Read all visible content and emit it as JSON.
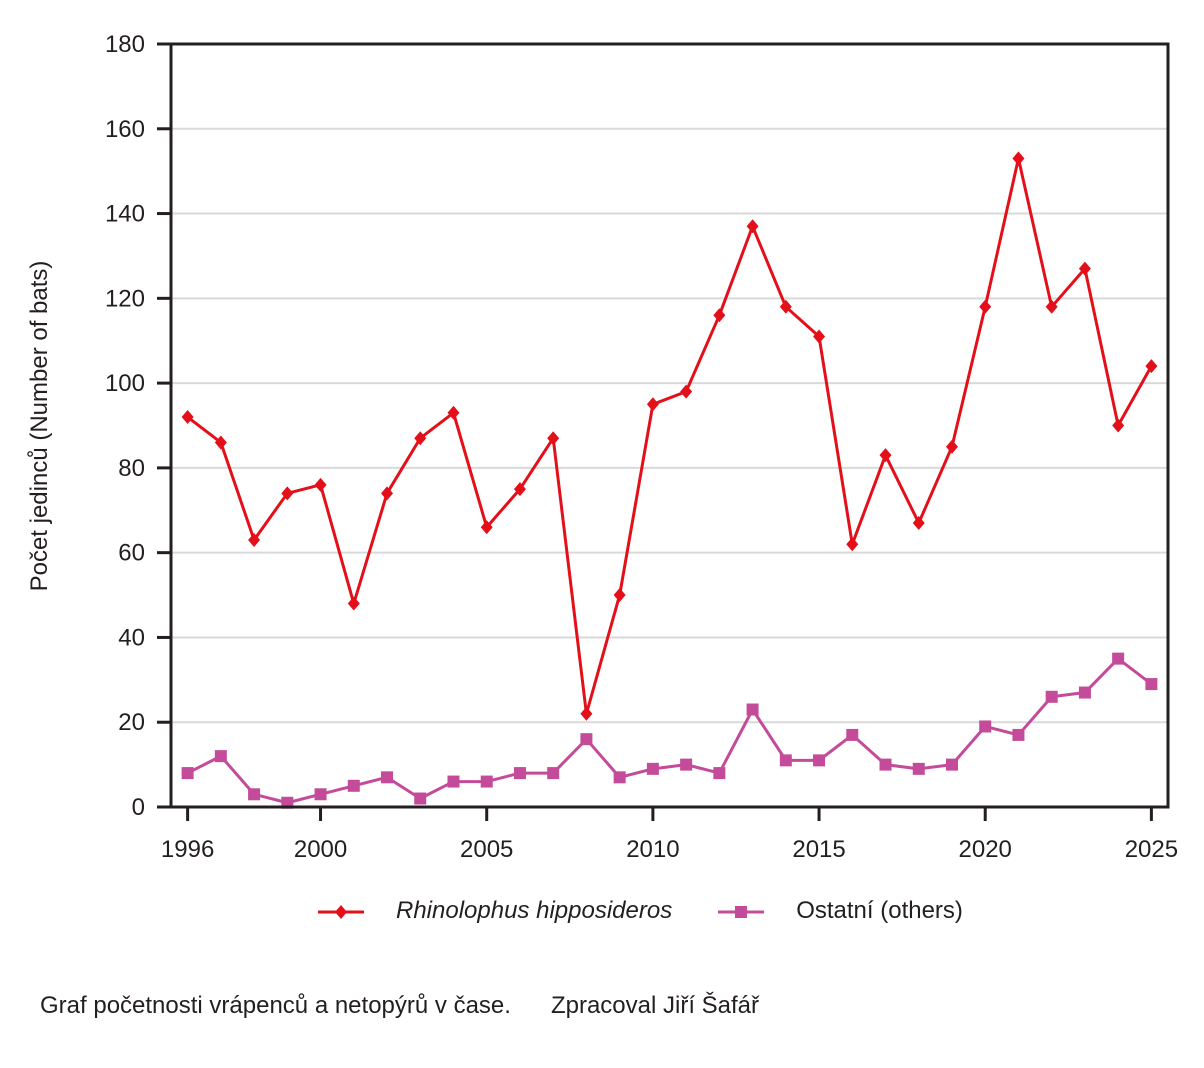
{
  "chart_data": {
    "type": "line",
    "title": "",
    "xlabel": "",
    "ylabel": "Počet jedinců (Number of bats)",
    "x": [
      1996,
      1997,
      1998,
      1999,
      2000,
      2001,
      2002,
      2003,
      2004,
      2005,
      2006,
      2007,
      2008,
      2009,
      2010,
      2011,
      2012,
      2013,
      2014,
      2015,
      2016,
      2017,
      2018,
      2019,
      2020,
      2021,
      2022,
      2023,
      2024,
      2025
    ],
    "xlim": [
      1995.5,
      2025.5
    ],
    "ylim": [
      0,
      180
    ],
    "x_ticks": [
      1996,
      2000,
      2005,
      2010,
      2015,
      2020,
      2025
    ],
    "x_tick_labels": [
      "1996",
      "2000",
      "2005",
      "2010",
      "2015",
      "2020",
      "2025"
    ],
    "y_ticks": [
      0,
      20,
      40,
      60,
      80,
      100,
      120,
      140,
      160,
      180
    ],
    "y_tick_labels": [
      "0",
      "20",
      "40",
      "60",
      "80",
      "100",
      "120",
      "140",
      "160",
      "180"
    ],
    "grid": "horizontal",
    "legend_position": "bottom",
    "series": [
      {
        "name": "Rhinolophus hipposideros",
        "italic": true,
        "color": "#e3101a",
        "marker": "diamond",
        "values": [
          92,
          86,
          63,
          74,
          76,
          48,
          74,
          87,
          93,
          66,
          75,
          87,
          22,
          50,
          95,
          98,
          116,
          137,
          118,
          111,
          62,
          83,
          67,
          85,
          118,
          153,
          118,
          127,
          90,
          104
        ]
      },
      {
        "name": "Ostatní (others)",
        "italic": false,
        "color": "#c44b9a",
        "marker": "square",
        "values": [
          8,
          12,
          3,
          1,
          3,
          5,
          7,
          2,
          6,
          6,
          8,
          8,
          16,
          7,
          9,
          10,
          8,
          23,
          11,
          11,
          17,
          10,
          9,
          10,
          19,
          17,
          26,
          27,
          35,
          29
        ]
      }
    ]
  },
  "caption": {
    "description": "Graf početnosti vrápenců a netopýrů v čase.",
    "author": "Zpracoval Jiří Šafář"
  }
}
